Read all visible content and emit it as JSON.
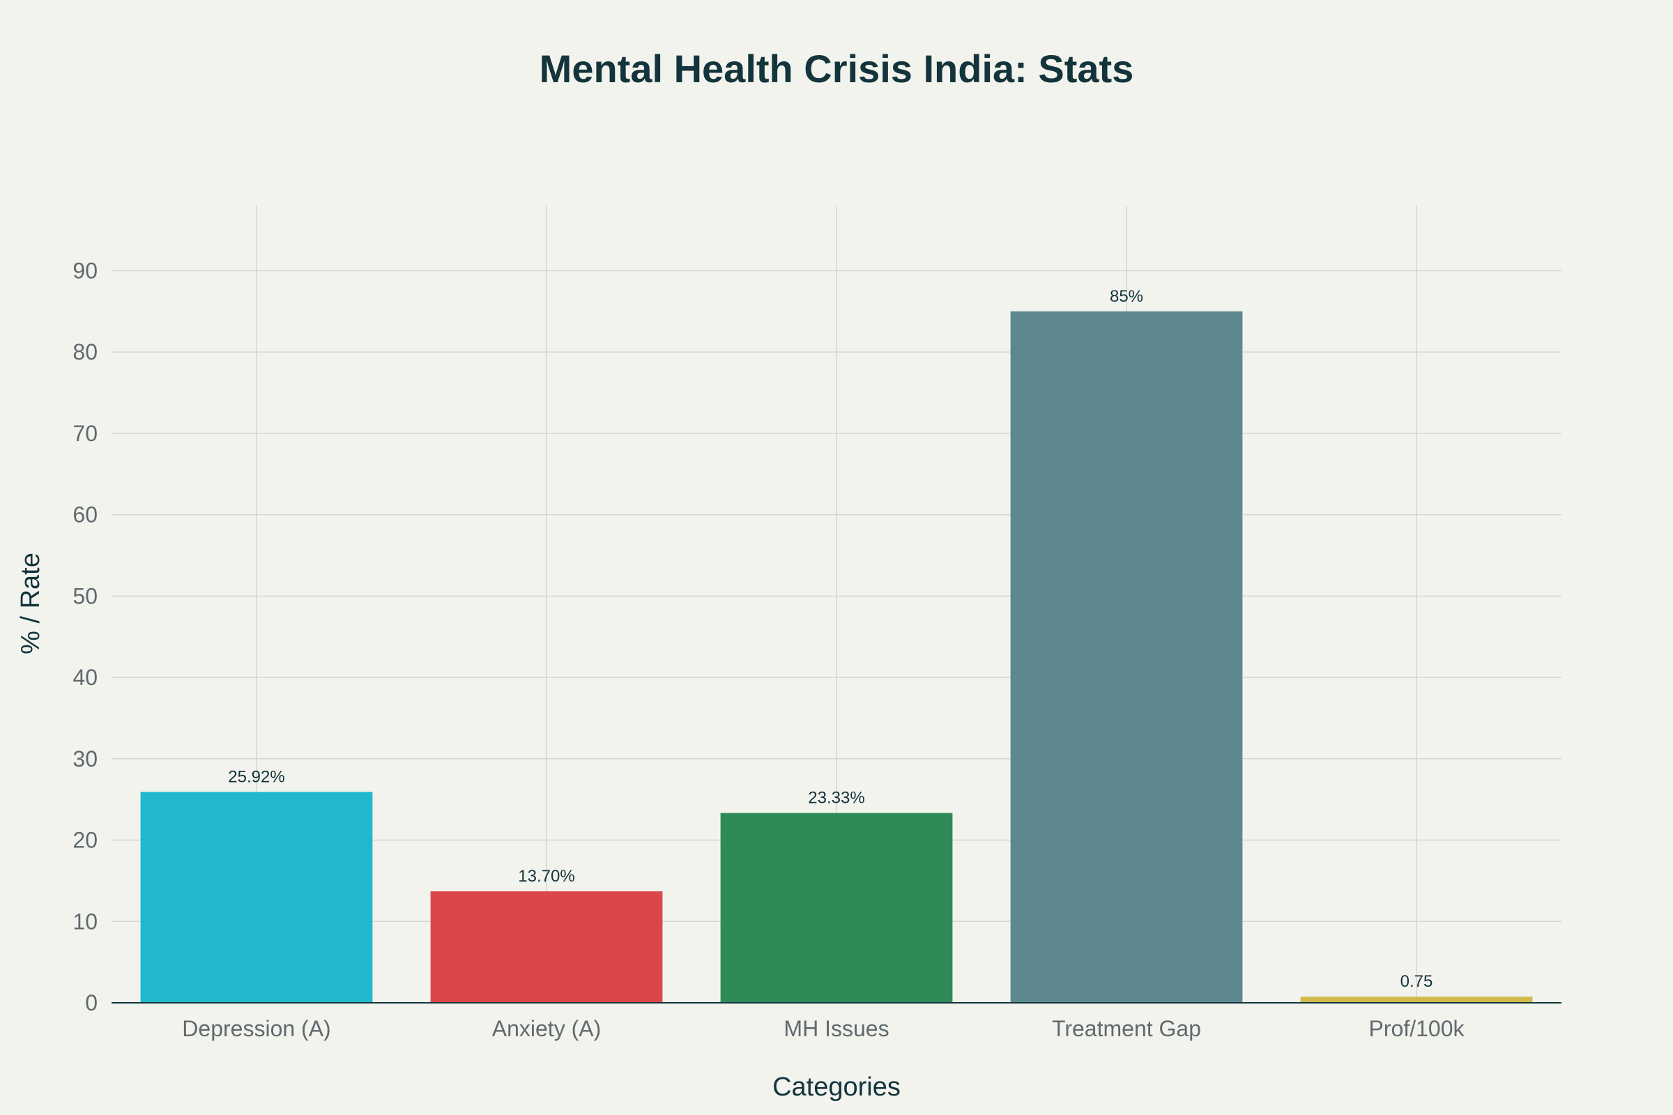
{
  "chart_data": {
    "type": "bar",
    "title": "Mental Health Crisis India: Stats",
    "xlabel": "Categories",
    "ylabel": "% / Rate",
    "categories": [
      "Depression (A)",
      "Anxiety (A)",
      "MH Issues",
      "Treatment Gap",
      "Prof/100k"
    ],
    "values": [
      25.92,
      13.7,
      23.33,
      85,
      0.75
    ],
    "data_labels": [
      "25.92%",
      "13.70%",
      "23.33%",
      "85%",
      "0.75"
    ],
    "colors": [
      "#21b8cd",
      "#dc4648",
      "#2e8b57",
      "#5e8890",
      "#d2ba4c"
    ],
    "ylim": [
      0,
      98
    ],
    "yticks": [
      0,
      10,
      20,
      30,
      40,
      50,
      60,
      70,
      80,
      90
    ],
    "grid": true,
    "legend": "none"
  }
}
